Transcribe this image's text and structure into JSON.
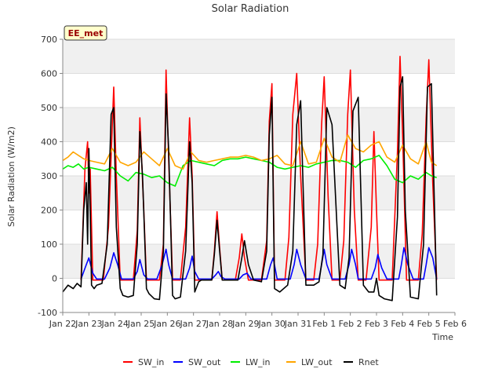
{
  "chart_data": {
    "type": "line",
    "title": "Solar Radiation",
    "xlabel": "Time",
    "ylabel": "Solar Radiation (W/m2)",
    "station_label": "EE_met",
    "ylim": [
      -100,
      700
    ],
    "yticks": [
      -100,
      0,
      100,
      200,
      300,
      400,
      500,
      600,
      700
    ],
    "xlim": [
      0,
      15
    ],
    "xticks": [
      {
        "x": 0,
        "label": "Jan 22"
      },
      {
        "x": 1,
        "label": "Jan 23"
      },
      {
        "x": 2,
        "label": "Jan 24"
      },
      {
        "x": 3,
        "label": "Jan 25"
      },
      {
        "x": 4,
        "label": "Jan 26"
      },
      {
        "x": 5,
        "label": "Jan 27"
      },
      {
        "x": 6,
        "label": "Jan 28"
      },
      {
        "x": 7,
        "label": "Jan 29"
      },
      {
        "x": 8,
        "label": "Jan 30"
      },
      {
        "x": 9,
        "label": "Jan 31"
      },
      {
        "x": 10,
        "label": "Feb 1"
      },
      {
        "x": 11,
        "label": "Feb 2"
      },
      {
        "x": 12,
        "label": "Feb 3"
      },
      {
        "x": 13,
        "label": "Feb 4"
      },
      {
        "x": 14,
        "label": "Feb 5"
      },
      {
        "x": 15,
        "label": "Feb 6"
      }
    ],
    "x_units": "days since Jan 22",
    "grid": "horizontal bands",
    "legend_position": "bottom",
    "series": [
      {
        "name": "SW_in",
        "color": "#ff0000",
        "x": [
          0.7,
          0.85,
          0.95,
          1.0,
          1.05,
          1.15,
          1.3,
          1.55,
          1.75,
          1.95,
          2.05,
          2.2,
          2.3,
          2.5,
          2.7,
          2.85,
          2.95,
          3.1,
          3.2,
          3.5,
          3.7,
          3.85,
          3.95,
          4.05,
          4.2,
          4.3,
          4.5,
          4.7,
          4.85,
          4.95,
          5.05,
          5.2,
          5.3,
          5.5,
          5.7,
          5.8,
          5.9,
          6.0,
          6.1,
          6.3,
          6.6,
          6.75,
          6.85,
          6.95,
          7.1,
          7.3,
          7.6,
          7.8,
          7.9,
          8.0,
          8.1,
          8.3,
          8.5,
          8.65,
          8.8,
          8.95,
          9.1,
          9.3,
          9.6,
          9.75,
          9.9,
          10.0,
          10.15,
          10.3,
          10.6,
          10.75,
          10.9,
          11.0,
          11.15,
          11.3,
          11.6,
          11.8,
          11.9,
          12.0,
          12.1,
          12.3,
          12.6,
          12.8,
          12.9,
          13.0,
          13.15,
          13.3,
          13.6,
          13.75,
          13.9,
          14.0,
          14.15,
          14.3
        ],
        "y": [
          -5,
          320,
          400,
          250,
          320,
          -5,
          -5,
          -5,
          150,
          560,
          300,
          -5,
          -5,
          -5,
          -5,
          140,
          470,
          200,
          -5,
          -5,
          -5,
          100,
          610,
          350,
          -5,
          -5,
          -5,
          150,
          470,
          300,
          -5,
          -5,
          -5,
          -5,
          -5,
          80,
          195,
          90,
          -5,
          -5,
          -5,
          60,
          130,
          60,
          -5,
          -5,
          -5,
          110,
          460,
          570,
          -5,
          -5,
          -5,
          120,
          480,
          600,
          300,
          -5,
          -5,
          100,
          450,
          590,
          240,
          -5,
          -5,
          110,
          480,
          610,
          200,
          -5,
          -5,
          150,
          430,
          200,
          -5,
          -5,
          -5,
          370,
          650,
          420,
          -5,
          -5,
          -5,
          130,
          470,
          640,
          280,
          -5
        ]
      },
      {
        "name": "SW_out",
        "color": "#0000ff",
        "x": [
          0.7,
          0.9,
          1.0,
          1.15,
          1.3,
          1.6,
          1.8,
          1.95,
          2.1,
          2.25,
          2.5,
          2.7,
          2.85,
          2.95,
          3.1,
          3.25,
          3.6,
          3.8,
          3.95,
          4.05,
          4.2,
          4.5,
          4.7,
          4.85,
          4.95,
          5.05,
          5.2,
          5.5,
          5.7,
          5.85,
          5.95,
          6.05,
          6.2,
          6.5,
          6.75,
          6.9,
          7.05,
          7.2,
          7.6,
          7.8,
          7.95,
          8.05,
          8.2,
          8.5,
          8.7,
          8.85,
          8.95,
          9.1,
          9.3,
          9.6,
          9.8,
          9.9,
          10.0,
          10.1,
          10.3,
          10.6,
          10.8,
          10.95,
          11.05,
          11.2,
          11.3,
          11.6,
          11.8,
          11.95,
          12.05,
          12.2,
          12.4,
          12.6,
          12.85,
          12.95,
          13.05,
          13.2,
          13.4,
          13.6,
          13.8,
          13.9,
          14.0,
          14.15,
          14.3
        ],
        "y": [
          -2,
          40,
          60,
          15,
          -2,
          -2,
          30,
          75,
          40,
          -2,
          -2,
          -2,
          20,
          55,
          10,
          -2,
          -2,
          40,
          85,
          40,
          -2,
          -2,
          -2,
          30,
          65,
          20,
          -2,
          -2,
          -2,
          10,
          20,
          5,
          -2,
          -2,
          -2,
          10,
          15,
          -2,
          -2,
          -2,
          40,
          60,
          -2,
          -2,
          -2,
          40,
          85,
          40,
          -2,
          -2,
          -2,
          40,
          85,
          40,
          -2,
          -2,
          -2,
          40,
          85,
          40,
          -2,
          -2,
          -2,
          30,
          70,
          30,
          -2,
          -2,
          -2,
          40,
          90,
          40,
          -2,
          -2,
          -2,
          40,
          90,
          60,
          -2
        ]
      },
      {
        "name": "LW_in",
        "color": "#00ee00",
        "x": [
          0.0,
          0.2,
          0.4,
          0.6,
          0.8,
          1.0,
          1.3,
          1.6,
          1.9,
          2.2,
          2.5,
          2.8,
          3.1,
          3.4,
          3.7,
          4.0,
          4.3,
          4.6,
          4.9,
          5.2,
          5.5,
          5.8,
          6.1,
          6.4,
          6.7,
          7.0,
          7.3,
          7.6,
          7.9,
          8.2,
          8.5,
          8.8,
          9.1,
          9.4,
          9.7,
          10.0,
          10.3,
          10.6,
          10.9,
          11.2,
          11.5,
          11.8,
          12.1,
          12.4,
          12.7,
          13.0,
          13.3,
          13.6,
          13.9,
          14.1,
          14.3
        ],
        "y": [
          320,
          330,
          325,
          335,
          320,
          325,
          320,
          315,
          325,
          300,
          285,
          310,
          305,
          295,
          300,
          280,
          270,
          330,
          345,
          340,
          335,
          330,
          345,
          350,
          350,
          355,
          350,
          345,
          340,
          325,
          320,
          325,
          330,
          325,
          335,
          340,
          345,
          345,
          340,
          325,
          345,
          350,
          360,
          330,
          290,
          280,
          300,
          290,
          310,
          300,
          295
        ]
      },
      {
        "name": "LW_out",
        "color": "#ffa500",
        "x": [
          0.0,
          0.2,
          0.4,
          0.6,
          0.8,
          1.0,
          1.3,
          1.6,
          1.9,
          2.2,
          2.5,
          2.8,
          3.1,
          3.4,
          3.7,
          4.0,
          4.3,
          4.6,
          4.9,
          5.2,
          5.5,
          5.8,
          6.1,
          6.4,
          6.7,
          7.0,
          7.3,
          7.6,
          7.9,
          8.2,
          8.5,
          8.8,
          9.1,
          9.4,
          9.7,
          10.0,
          10.3,
          10.6,
          10.9,
          11.2,
          11.5,
          11.8,
          12.1,
          12.4,
          12.7,
          13.0,
          13.3,
          13.6,
          13.9,
          14.1,
          14.3
        ],
        "y": [
          345,
          355,
          370,
          360,
          350,
          345,
          340,
          335,
          380,
          340,
          330,
          340,
          370,
          350,
          330,
          380,
          330,
          320,
          370,
          345,
          340,
          345,
          350,
          355,
          355,
          360,
          355,
          345,
          350,
          360,
          335,
          330,
          400,
          335,
          340,
          410,
          355,
          340,
          420,
          380,
          370,
          390,
          400,
          355,
          340,
          390,
          350,
          335,
          400,
          340,
          330
        ]
      },
      {
        "name": "Rnet",
        "color": "#000000",
        "x": [
          0.0,
          0.2,
          0.4,
          0.55,
          0.7,
          0.8,
          0.9,
          0.95,
          1.0,
          1.05,
          1.1,
          1.2,
          1.3,
          1.5,
          1.7,
          1.85,
          1.95,
          2.05,
          2.2,
          2.3,
          2.5,
          2.7,
          2.85,
          2.95,
          3.05,
          3.2,
          3.3,
          3.5,
          3.7,
          3.85,
          3.95,
          4.05,
          4.2,
          4.3,
          4.5,
          4.7,
          4.85,
          4.95,
          5.05,
          5.2,
          5.3,
          5.5,
          5.7,
          5.8,
          5.9,
          6.0,
          6.1,
          6.3,
          6.5,
          6.7,
          6.85,
          6.95,
          7.1,
          7.3,
          7.6,
          7.8,
          7.9,
          8.0,
          8.1,
          8.3,
          8.6,
          8.8,
          8.95,
          9.1,
          9.3,
          9.6,
          9.8,
          9.95,
          10.1,
          10.3,
          10.6,
          10.8,
          10.95,
          11.1,
          11.3,
          11.5,
          11.7,
          11.9,
          12.0,
          12.1,
          12.3,
          12.6,
          12.8,
          12.9,
          13.0,
          13.1,
          13.3,
          13.6,
          13.8,
          13.95,
          14.1,
          14.3
        ],
        "y": [
          -40,
          -20,
          -30,
          -15,
          -25,
          200,
          280,
          100,
          380,
          200,
          -20,
          -30,
          -20,
          -15,
          100,
          480,
          500,
          150,
          -30,
          -50,
          -55,
          -50,
          100,
          430,
          300,
          -30,
          -45,
          -60,
          -62,
          80,
          540,
          380,
          -50,
          -60,
          -55,
          80,
          400,
          280,
          -40,
          -10,
          -5,
          -5,
          -5,
          70,
          170,
          80,
          -5,
          -5,
          -5,
          -5,
          60,
          110,
          40,
          -5,
          -10,
          80,
          420,
          530,
          -30,
          -40,
          -20,
          80,
          450,
          520,
          -20,
          -20,
          -10,
          70,
          500,
          450,
          -20,
          -30,
          60,
          490,
          530,
          -20,
          -40,
          -40,
          0,
          -50,
          -60,
          -65,
          180,
          560,
          590,
          200,
          -55,
          -60,
          100,
          560,
          570,
          -50
        ]
      }
    ]
  }
}
